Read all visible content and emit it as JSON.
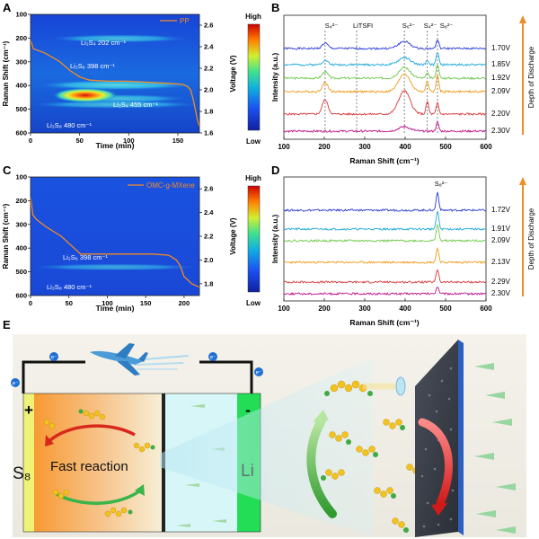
{
  "panels": {
    "A": {
      "letter": "A",
      "y_label": "Raman Shift (cm⁻¹)",
      "x_label": "Time (min)",
      "y2_label": "Voltage (V)",
      "legend": "PP",
      "colorbar_high": "High",
      "colorbar_low": "Low",
      "x_ticks": [
        "0",
        "50",
        "100",
        "150"
      ],
      "y_ticks": [
        "100",
        "200",
        "300",
        "400",
        "500",
        "600"
      ],
      "y2_ticks": [
        "2.6",
        "2.4",
        "2.2",
        "2.0",
        "1.8",
        "1.6"
      ],
      "annotations": [
        "Li₂S₄ 202 cm⁻¹",
        "Li₂S₆ 398 cm⁻¹",
        "Li₂S₄ 455 cm⁻¹",
        "Li₂S₈ 480 cm⁻¹"
      ]
    },
    "B": {
      "letter": "B",
      "y_label": "Intensity (a.u.)",
      "x_label": "Raman Shift (cm⁻¹)",
      "x_ticks": [
        "100",
        "200",
        "300",
        "400",
        "500",
        "600"
      ],
      "peak_labels": [
        "S₄²⁻",
        "LiTSFI",
        "S₆²⁻",
        "S₄²⁻",
        "S₈²⁻"
      ],
      "voltages": [
        "1.70V",
        "1.85V",
        "1.92V",
        "2.09V",
        "2.20V",
        "2.30V"
      ],
      "depth_label": "Depth of Discharge"
    },
    "C": {
      "letter": "C",
      "y_label": "Raman Shift (cm⁻¹)",
      "x_label": "Time (min)",
      "y2_label": "Voltage (V)",
      "legend": "OMC-g-MXene",
      "colorbar_high": "High",
      "colorbar_low": "Low",
      "x_ticks": [
        "0",
        "50",
        "100",
        "150",
        "200"
      ],
      "y_ticks": [
        "100",
        "200",
        "300",
        "400",
        "500",
        "600"
      ],
      "y2_ticks": [
        "2.6",
        "2.4",
        "2.2",
        "2.0",
        "1.8"
      ],
      "annotations": [
        "Li₂S₆ 398 cm⁻¹",
        "Li₂S₈ 480 cm⁻¹"
      ]
    },
    "D": {
      "letter": "D",
      "y_label": "Intensity (a.u.)",
      "x_label": "Raman Shift (cm⁻¹)",
      "x_ticks": [
        "100",
        "200",
        "300",
        "400",
        "500",
        "600"
      ],
      "peak_labels": [
        "S₈²⁻"
      ],
      "voltages": [
        "1.72V",
        "1.91V",
        "2.09V",
        "2.13V",
        "2.29V",
        "2.30V"
      ],
      "depth_label": "Depth of Discharge"
    },
    "E": {
      "letter": "E",
      "cathode": "S₈",
      "anode": "Li",
      "plus": "+",
      "minus": "-",
      "reaction": "Fast reaction",
      "electron": "e⁻"
    }
  },
  "chart_data": [
    {
      "type": "heatmap",
      "panel": "A",
      "xlabel": "Time (min)",
      "ylabel": "Raman Shift (cm⁻¹)",
      "y2label": "Voltage (V)",
      "xlim": [
        0,
        172
      ],
      "ylim": [
        100,
        600
      ],
      "y2lim": [
        1.6,
        2.7
      ],
      "bands": [
        {
          "shift": 202,
          "t_start": 20,
          "t_end": 160,
          "strength": 0.55
        },
        {
          "shift": 398,
          "t_start": 5,
          "t_end": 168,
          "strength": 0.9
        },
        {
          "shift": 455,
          "t_start": 20,
          "t_end": 160,
          "strength": 0.6
        },
        {
          "shift": 480,
          "t_start": 0,
          "t_end": 172,
          "strength": 0.5
        }
      ],
      "voltage_series": {
        "name": "PP",
        "time": [
          0,
          3,
          15,
          30,
          40,
          50,
          60,
          80,
          100,
          120,
          140,
          155,
          160,
          163,
          166,
          170,
          172
        ],
        "voltage": [
          2.46,
          2.38,
          2.34,
          2.26,
          2.18,
          2.12,
          2.09,
          2.08,
          2.08,
          2.07,
          2.06,
          2.05,
          2.03,
          2.0,
          1.9,
          1.72,
          1.66
        ]
      }
    },
    {
      "type": "line",
      "panel": "B",
      "xlabel": "Raman Shift (cm⁻¹)",
      "ylabel": "Intensity (a.u.)",
      "xlim": [
        100,
        600
      ],
      "reference_lines": [
        202,
        280,
        398,
        455,
        480
      ],
      "series": [
        {
          "name": "1.70V",
          "color": "#2b3bd4",
          "peaks": [
            [
              202,
              6
            ],
            [
              398,
              8
            ],
            [
              480,
              10
            ]
          ]
        },
        {
          "name": "1.85V",
          "color": "#1fa8d8",
          "peaks": [
            [
              202,
              5
            ],
            [
              398,
              8
            ],
            [
              455,
              5
            ],
            [
              480,
              14
            ]
          ]
        },
        {
          "name": "1.92V",
          "color": "#6fc84c",
          "peaks": [
            [
              202,
              7
            ],
            [
              398,
              12
            ],
            [
              455,
              6
            ],
            [
              480,
              16
            ]
          ]
        },
        {
          "name": "2.09V",
          "color": "#f09a1a",
          "peaks": [
            [
              202,
              10
            ],
            [
              398,
              20
            ],
            [
              455,
              12
            ],
            [
              480,
              18
            ]
          ]
        },
        {
          "name": "2.20V",
          "color": "#d9363a",
          "peaks": [
            [
              202,
              16
            ],
            [
              398,
              26
            ],
            [
              455,
              14
            ],
            [
              480,
              12
            ]
          ]
        },
        {
          "name": "2.30V",
          "color": "#c0108a",
          "peaks": [
            [
              398,
              5
            ],
            [
              480,
              10
            ]
          ]
        }
      ]
    },
    {
      "type": "heatmap",
      "panel": "C",
      "xlabel": "Time (min)",
      "ylabel": "Raman Shift (cm⁻¹)",
      "y2label": "Voltage (V)",
      "xlim": [
        0,
        220
      ],
      "ylim": [
        100,
        600
      ],
      "y2lim": [
        1.7,
        2.7
      ],
      "bands": [
        {
          "shift": 480,
          "t_start": 0,
          "t_end": 220,
          "strength": 0.3
        }
      ],
      "voltage_series": {
        "name": "OMC-g-MXene",
        "time": [
          0,
          3,
          8,
          20,
          40,
          60,
          65,
          80,
          120,
          160,
          180,
          190,
          195,
          200,
          210,
          220
        ],
        "voltage": [
          2.53,
          2.38,
          2.34,
          2.28,
          2.2,
          2.08,
          2.05,
          2.05,
          2.05,
          2.05,
          2.04,
          2.0,
          1.95,
          1.86,
          1.8,
          1.77
        ]
      }
    },
    {
      "type": "line",
      "panel": "D",
      "xlabel": "Raman Shift (cm⁻¹)",
      "ylabel": "Intensity (a.u.)",
      "xlim": [
        100,
        600
      ],
      "series": [
        {
          "name": "1.72V",
          "color": "#2b3bd4",
          "peaks": [
            [
              480,
              20
            ]
          ]
        },
        {
          "name": "1.91V",
          "color": "#1fa8d8",
          "peaks": [
            [
              480,
              20
            ]
          ]
        },
        {
          "name": "2.09V",
          "color": "#6fc84c",
          "peaks": [
            [
              480,
              18
            ]
          ]
        },
        {
          "name": "2.13V",
          "color": "#f09a1a",
          "peaks": [
            [
              480,
              16
            ]
          ]
        },
        {
          "name": "2.29V",
          "color": "#d9363a",
          "peaks": [
            [
              480,
              14
            ]
          ]
        },
        {
          "name": "2.30V",
          "color": "#c0108a",
          "peaks": [
            [
              480,
              8
            ]
          ]
        }
      ]
    }
  ],
  "colors": {
    "voltage_line": "#f28b24",
    "colormap": [
      "#1020a0",
      "#1a40e0",
      "#10a0e0",
      "#30e0a0",
      "#b0f040",
      "#ffe000",
      "#ff6000",
      "#d00000"
    ],
    "cathode": "#eef277",
    "anode": "#22dd55",
    "electrolyte": "#d7f6f7",
    "sulfur": "#f3c21c",
    "lithium": "#3faa44"
  }
}
